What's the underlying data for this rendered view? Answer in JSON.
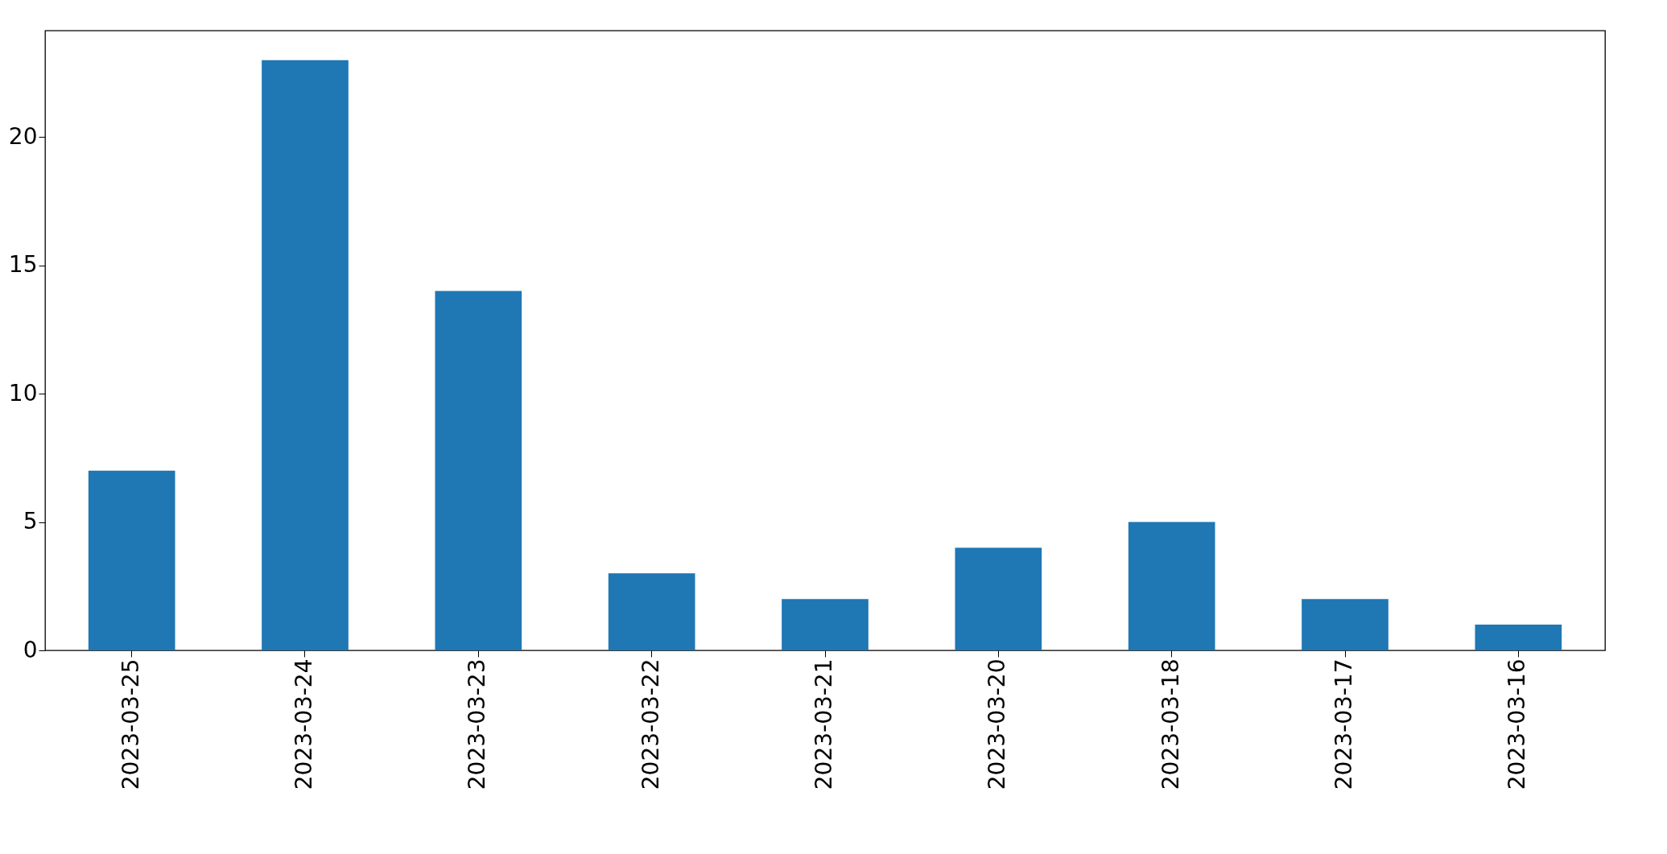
{
  "chart_data": {
    "type": "bar",
    "categories": [
      "2023-03-25",
      "2023-03-24",
      "2023-03-23",
      "2023-03-22",
      "2023-03-21",
      "2023-03-20",
      "2023-03-18",
      "2023-03-17",
      "2023-03-16"
    ],
    "values": [
      7,
      23,
      14,
      3,
      2,
      4,
      5,
      2,
      1
    ],
    "color": "#1f77b4",
    "ylim": [
      0,
      24.15
    ],
    "yticks": [
      0,
      5,
      10,
      15,
      20
    ],
    "grid": false
  }
}
